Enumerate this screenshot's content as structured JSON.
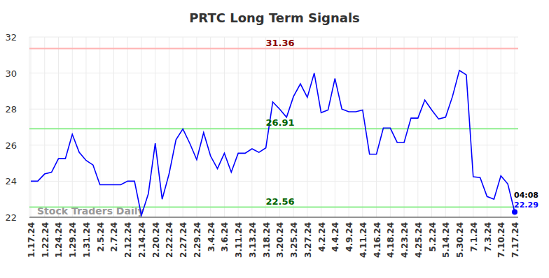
{
  "chart_data": {
    "type": "line",
    "title": "PRTC Long Term Signals",
    "categories": [
      "1.17.24",
      null,
      "1.22.24",
      null,
      "1.24.24",
      null,
      "1.29.24",
      null,
      "1.31.24",
      null,
      "2.5.24",
      null,
      "2.7.24",
      null,
      "2.12.24",
      null,
      "2.14.24",
      null,
      "2.20.24",
      null,
      "2.22.24",
      null,
      "2.27.24",
      null,
      "2.29.24",
      null,
      "3.4.24",
      null,
      "3.6.24",
      null,
      "3.11.24",
      null,
      "3.13.24",
      null,
      "3.18.24",
      null,
      "3.20.24",
      null,
      "3.25.24",
      null,
      "3.27.24",
      null,
      "4.2.24",
      null,
      "4.4.24",
      null,
      "4.9.24",
      null,
      "4.11.24",
      null,
      "4.16.24",
      null,
      "4.18.24",
      null,
      "4.23.24",
      null,
      "4.25.24",
      null,
      "5.2.24",
      null,
      "5.14.24",
      null,
      "5.30.24",
      null,
      "7.1.24",
      null,
      "7.3.24",
      null,
      "7.10.24",
      null,
      "7.17.24"
    ],
    "values": [
      24.0,
      24.0,
      24.4,
      24.5,
      25.25,
      25.25,
      26.6,
      25.6,
      25.15,
      24.9,
      23.8,
      23.8,
      23.8,
      23.8,
      24.0,
      24.0,
      22.1,
      23.3,
      26.1,
      23.0,
      24.4,
      26.3,
      26.9,
      26.1,
      25.2,
      26.7,
      25.4,
      24.7,
      25.55,
      24.5,
      25.55,
      25.55,
      25.8,
      25.6,
      25.85,
      28.4,
      28.0,
      27.55,
      28.7,
      29.4,
      28.65,
      30.0,
      27.8,
      27.95,
      29.7,
      28.0,
      27.85,
      27.85,
      27.95,
      25.5,
      25.5,
      26.95,
      26.95,
      26.15,
      26.15,
      27.5,
      27.5,
      28.5,
      27.95,
      27.45,
      27.55,
      28.7,
      30.15,
      29.9,
      24.25,
      24.2,
      23.15,
      23.0,
      24.3,
      23.85,
      22.29
    ],
    "color": "#0000ff",
    "ylim": [
      22,
      32
    ],
    "yticks": [
      22,
      24,
      26,
      28,
      30,
      32
    ],
    "grid": true,
    "reference_lines": [
      {
        "value": 31.36,
        "color": "#ffb3b3"
      },
      {
        "value": 26.91,
        "color": "#90ee90"
      },
      {
        "value": 22.56,
        "color": "#90ee90"
      }
    ],
    "watermark": "Stock Traders Daily",
    "last_point": {
      "time": "04:08",
      "value": 22.29
    }
  }
}
